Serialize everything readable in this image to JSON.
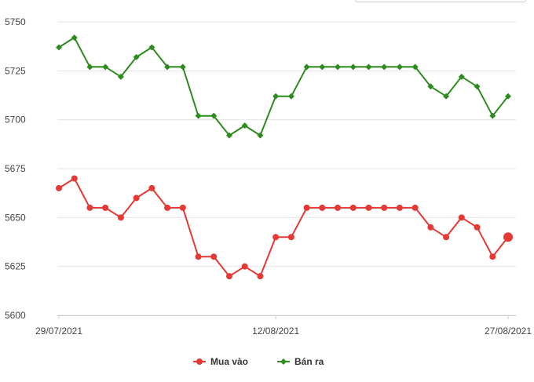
{
  "chart_data": {
    "type": "line",
    "x": [
      "29/07/2021",
      "30/07/2021",
      "31/07/2021",
      "01/08/2021",
      "02/08/2021",
      "03/08/2021",
      "04/08/2021",
      "05/08/2021",
      "06/08/2021",
      "07/08/2021",
      "08/08/2021",
      "09/08/2021",
      "10/08/2021",
      "11/08/2021",
      "12/08/2021",
      "13/08/2021",
      "14/08/2021",
      "15/08/2021",
      "16/08/2021",
      "17/08/2021",
      "18/08/2021",
      "19/08/2021",
      "20/08/2021",
      "21/08/2021",
      "22/08/2021",
      "23/08/2021",
      "24/08/2021",
      "25/08/2021",
      "26/08/2021",
      "27/08/2021"
    ],
    "x_tick_labels": [
      "29/07/2021",
      "12/08/2021",
      "27/08/2021"
    ],
    "y_ticks": [
      5600,
      5625,
      5650,
      5675,
      5700,
      5725,
      5750
    ],
    "ylim": [
      5600,
      5750
    ],
    "grid": true,
    "legend_position": "bottom-center",
    "series": [
      {
        "name": "Mua vào",
        "color": "#e53935",
        "marker": "circle",
        "values": [
          5665,
          5670,
          5655,
          5655,
          5650,
          5660,
          5665,
          5655,
          5655,
          5630,
          5630,
          5620,
          5625,
          5620,
          5640,
          5640,
          5655,
          5655,
          5655,
          5655,
          5655,
          5655,
          5655,
          5655,
          5645,
          5640,
          5650,
          5645,
          5630,
          5640
        ]
      },
      {
        "name": "Bán ra",
        "color": "#2e8b1e",
        "marker": "diamond",
        "values": [
          5737,
          5742,
          5727,
          5727,
          5722,
          5732,
          5737,
          5727,
          5727,
          5702,
          5702,
          5692,
          5697,
          5692,
          5712,
          5712,
          5727,
          5727,
          5727,
          5727,
          5727,
          5727,
          5727,
          5727,
          5717,
          5712,
          5722,
          5717,
          5702,
          5712
        ]
      }
    ]
  }
}
